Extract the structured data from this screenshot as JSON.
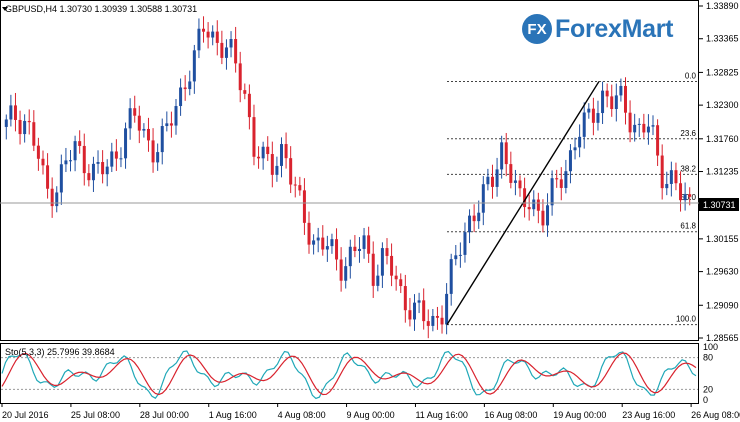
{
  "header": {
    "symbol_text": "GBPUSD,H4  1.30730 1.30939 1.30588 1.30731",
    "indicator_text": "Sto(5,3,3) 25.7996 39.8684"
  },
  "logo": {
    "mark": "FX",
    "text": "ForexMart"
  },
  "price_axis": {
    "ticks": [
      "1.33890",
      "1.33365",
      "1.32825",
      "1.32300",
      "1.31760",
      "1.31235",
      "1.30710",
      "1.30155",
      "1.29630",
      "1.29090",
      "1.28565"
    ],
    "current_price": "1.30731"
  },
  "time_axis": {
    "labels": [
      "20 Jul 2016",
      "25 Jul 08:00",
      "28 Jul 00:00",
      "1 Aug 16:00",
      "4 Aug 08:00",
      "9 Aug 00:00",
      "11 Aug 16:00",
      "16 Aug 08:00",
      "19 Aug 00:00",
      "23 Aug 16:00",
      "26 Aug 08:00"
    ]
  },
  "stoch_axis": {
    "ticks": [
      "100",
      "80",
      "20",
      "0"
    ]
  },
  "fibonacci": {
    "levels": [
      "0.0",
      "23.6",
      "38.2",
      "50.0",
      "61.8",
      "100.0"
    ]
  },
  "colors": {
    "bull": "#1f4fa0",
    "bear": "#d9232e",
    "stoch_main": "#20a8b8",
    "stoch_signal": "#d9232e",
    "grid": "#555555"
  },
  "chart_data": {
    "type": "candlestick",
    "instrument": "GBPUSD",
    "timeframe": "H4",
    "ohlc_last": {
      "open": 1.3073,
      "high": 1.30939,
      "low": 1.30588,
      "close": 1.30731
    },
    "price_range": [
      1.28565,
      1.3389
    ],
    "current_price": 1.30731,
    "fibonacci_retracement": {
      "high": 1.3268,
      "low": 1.2878,
      "levels": [
        {
          "label": "0.0",
          "price": 1.3268
        },
        {
          "label": "23.6",
          "price": 1.3176
        },
        {
          "label": "38.2",
          "price": 1.3119
        },
        {
          "label": "50.0",
          "price": 1.3073
        },
        {
          "label": "61.8",
          "price": 1.3027
        },
        {
          "label": "100.0",
          "price": 1.2878
        }
      ]
    },
    "close_path": [
      1.3195,
      1.3215,
      1.3205,
      1.316,
      1.309,
      1.31,
      1.3135,
      1.316,
      1.314,
      1.312,
      1.3125,
      1.315,
      1.319,
      1.321,
      1.318,
      1.316,
      1.3175,
      1.3225,
      1.327,
      1.33,
      1.336,
      1.334,
      1.332,
      1.33,
      1.326,
      1.316,
      1.3135,
      1.314,
      1.3165,
      1.309,
      1.306,
      1.301,
      1.3005,
      1.299,
      1.2975,
      1.299,
      1.301,
      1.2965,
      1.2985,
      1.296,
      1.292,
      1.291,
      1.2885,
      1.288,
      1.2905,
      1.296,
      1.301,
      1.306,
      1.3075,
      1.3105,
      1.3165,
      1.312,
      1.306,
      1.309,
      1.3045,
      1.308,
      1.312,
      1.315,
      1.319,
      1.321,
      1.325,
      1.323,
      1.324,
      1.3215,
      1.318,
      1.32,
      1.313,
      1.311,
      1.3085,
      1.3073
    ],
    "stochastic": {
      "params": "5,3,3",
      "main": 25.7996,
      "signal": 39.8684,
      "levels": [
        20,
        80
      ],
      "range": [
        0,
        100
      ]
    }
  }
}
